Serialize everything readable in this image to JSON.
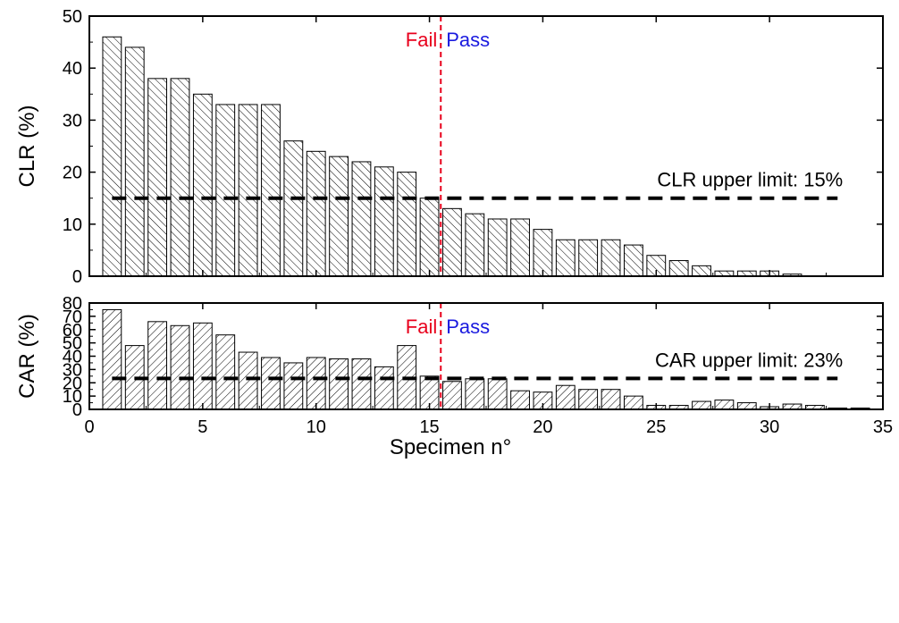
{
  "colors": {
    "bar_stroke": "#000000",
    "fail": "#e8001c",
    "pass": "#1a1adf",
    "limit": "#000000",
    "axis": "#000000"
  },
  "chart_data": [
    {
      "type": "bar",
      "panel": "top",
      "ylabel": "CLR (%)",
      "ylim": [
        0,
        50
      ],
      "yticks": [
        0,
        10,
        20,
        30,
        40,
        50
      ],
      "xlim": [
        0,
        35
      ],
      "hatch": "backslash",
      "x": [
        1,
        2,
        3,
        4,
        5,
        6,
        7,
        8,
        9,
        10,
        11,
        12,
        13,
        14,
        15,
        16,
        17,
        18,
        19,
        20,
        21,
        22,
        23,
        24,
        25,
        26,
        27,
        28,
        29,
        30,
        31
      ],
      "values": [
        46,
        44,
        38,
        38,
        35,
        33,
        33,
        33,
        26,
        24,
        23,
        22,
        21,
        20,
        15,
        13,
        12,
        11,
        11,
        9,
        7,
        7,
        7,
        6,
        4,
        3,
        2,
        1,
        1,
        1,
        0.4
      ],
      "limit": {
        "value": 15,
        "x_range": [
          1,
          33
        ],
        "label": "CLR upper limit: 15%"
      },
      "divider": {
        "x": 15.5,
        "fail_label": "Fail",
        "pass_label": "Pass"
      }
    },
    {
      "type": "bar",
      "panel": "bottom",
      "ylabel": "CAR (%)",
      "ylim": [
        0,
        80
      ],
      "yticks": [
        0,
        10,
        20,
        30,
        40,
        50,
        60,
        70,
        80
      ],
      "xlim": [
        0,
        35
      ],
      "xticks": [
        0,
        5,
        10,
        15,
        20,
        25,
        30,
        35
      ],
      "xlabel": "Specimen n°",
      "hatch": "slash",
      "x": [
        1,
        2,
        3,
        4,
        5,
        6,
        7,
        8,
        9,
        10,
        11,
        12,
        13,
        14,
        15,
        16,
        17,
        18,
        19,
        20,
        21,
        22,
        23,
        24,
        25,
        26,
        27,
        28,
        29,
        30,
        31,
        32,
        33,
        34
      ],
      "values": [
        75,
        48,
        66,
        63,
        65,
        56,
        43,
        39,
        35,
        39,
        38,
        38,
        32,
        48,
        25,
        21,
        23,
        23,
        14,
        13,
        18,
        15,
        15,
        10,
        3,
        3,
        6,
        7,
        5,
        2,
        4,
        3,
        1,
        1
      ],
      "limit": {
        "value": 23.3,
        "x_range": [
          1,
          33
        ],
        "label": "CAR upper limit: 23%"
      },
      "divider": {
        "x": 15.5,
        "fail_label": "Fail",
        "pass_label": "Pass"
      }
    }
  ]
}
